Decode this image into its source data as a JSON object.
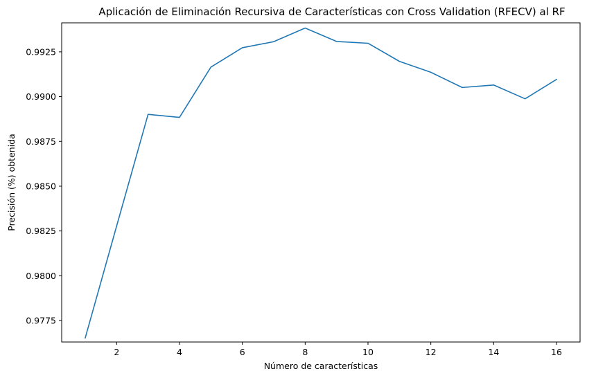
{
  "chart_data": {
    "type": "line",
    "title": "Aplicación de Eliminación Recursiva de Características con Cross Validation (RFECV) al RF",
    "xlabel": "Número de características",
    "ylabel": "Precisión (%) obtenida",
    "xlim": [
      0.25,
      16.75
    ],
    "ylim": [
      0.9763,
      0.99412
    ],
    "xticks": [
      2,
      4,
      6,
      8,
      10,
      12,
      14,
      16
    ],
    "xtick_labels": [
      "2",
      "4",
      "6",
      "8",
      "10",
      "12",
      "14",
      "16"
    ],
    "yticks": [
      0.9775,
      0.98,
      0.9825,
      0.985,
      0.9875,
      0.99,
      0.9925
    ],
    "ytick_labels": [
      "0.9775",
      "0.9800",
      "0.9825",
      "0.9850",
      "0.9875",
      "0.9900",
      "0.9925"
    ],
    "grid": false,
    "series": [
      {
        "color": "#1f77b4",
        "x": [
          1,
          2,
          3,
          4,
          5,
          6,
          7,
          8,
          9,
          10,
          11,
          12,
          13,
          14,
          15,
          16
        ],
        "y": [
          0.97653,
          0.98278,
          0.98901,
          0.98884,
          0.99165,
          0.99273,
          0.99307,
          0.99383,
          0.99308,
          0.99298,
          0.99197,
          0.99136,
          0.99051,
          0.99065,
          0.98988,
          0.99096
        ]
      }
    ]
  }
}
